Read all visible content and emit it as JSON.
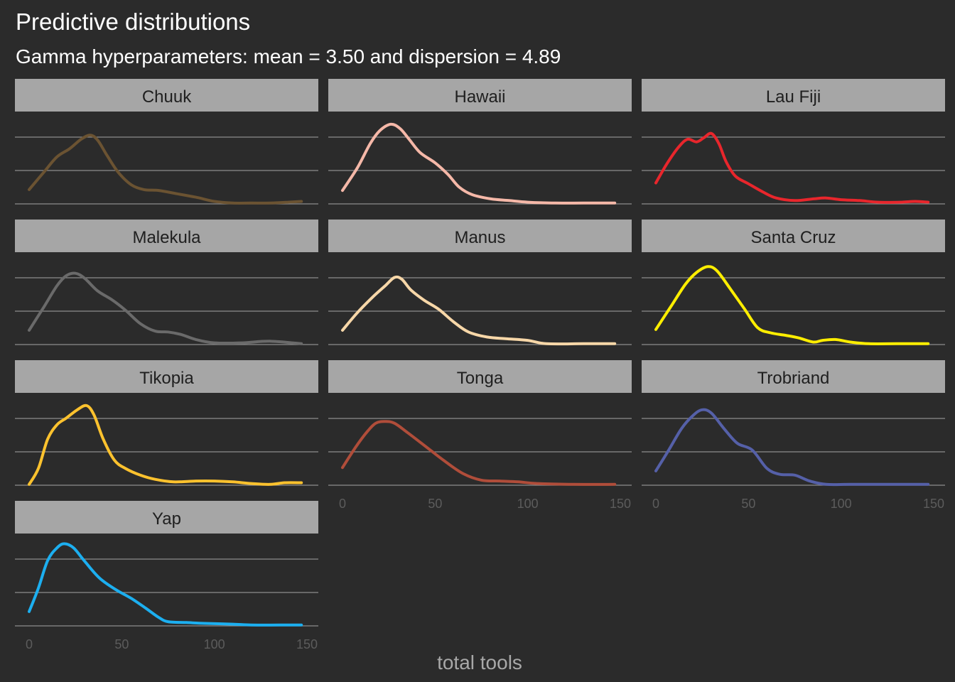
{
  "chart_data": {
    "type": "line",
    "title": "Predictive distributions",
    "subtitle": "Gamma hyperparameters: mean = 3.50 and dispersion = 4.89",
    "xlabel": "total tools",
    "ylabel": "",
    "xlim": [
      0,
      150
    ],
    "x_ticks": [
      0,
      50,
      100,
      150
    ],
    "x_tick_labels": [
      "0",
      "50",
      "100",
      "150"
    ],
    "y_gridlines": 3,
    "y_tick_labels_shown": false,
    "facets": [
      {
        "name": "Chuuk",
        "color": "#6b5332",
        "points": [
          [
            0,
            0.17
          ],
          [
            8,
            0.38
          ],
          [
            15,
            0.56
          ],
          [
            22,
            0.66
          ],
          [
            28,
            0.77
          ],
          [
            33,
            0.82
          ],
          [
            37,
            0.76
          ],
          [
            42,
            0.58
          ],
          [
            48,
            0.38
          ],
          [
            55,
            0.23
          ],
          [
            62,
            0.17
          ],
          [
            70,
            0.16
          ],
          [
            80,
            0.12
          ],
          [
            90,
            0.08
          ],
          [
            100,
            0.03
          ],
          [
            110,
            0.01
          ],
          [
            120,
            0.01
          ],
          [
            130,
            0.01
          ],
          [
            140,
            0.02
          ],
          [
            147,
            0.03
          ]
        ]
      },
      {
        "name": "Hawaii",
        "color": "#f5b8a8",
        "points": [
          [
            0,
            0.16
          ],
          [
            8,
            0.43
          ],
          [
            15,
            0.72
          ],
          [
            20,
            0.87
          ],
          [
            26,
            0.95
          ],
          [
            31,
            0.9
          ],
          [
            36,
            0.77
          ],
          [
            42,
            0.61
          ],
          [
            50,
            0.49
          ],
          [
            57,
            0.35
          ],
          [
            63,
            0.2
          ],
          [
            70,
            0.11
          ],
          [
            80,
            0.06
          ],
          [
            90,
            0.04
          ],
          [
            100,
            0.02
          ],
          [
            115,
            0.01
          ],
          [
            130,
            0.01
          ],
          [
            147,
            0.01
          ]
        ]
      },
      {
        "name": "Lau Fiji",
        "color": "#e8262c",
        "points": [
          [
            0,
            0.25
          ],
          [
            6,
            0.48
          ],
          [
            12,
            0.67
          ],
          [
            17,
            0.77
          ],
          [
            22,
            0.74
          ],
          [
            26,
            0.79
          ],
          [
            30,
            0.84
          ],
          [
            34,
            0.72
          ],
          [
            38,
            0.5
          ],
          [
            43,
            0.33
          ],
          [
            50,
            0.24
          ],
          [
            58,
            0.14
          ],
          [
            65,
            0.07
          ],
          [
            75,
            0.04
          ],
          [
            85,
            0.06
          ],
          [
            92,
            0.07
          ],
          [
            100,
            0.05
          ],
          [
            110,
            0.04
          ],
          [
            120,
            0.02
          ],
          [
            132,
            0.02
          ],
          [
            140,
            0.03
          ],
          [
            147,
            0.02
          ]
        ]
      },
      {
        "name": "Malekula",
        "color": "#6a6a6a",
        "points": [
          [
            0,
            0.17
          ],
          [
            8,
            0.45
          ],
          [
            15,
            0.7
          ],
          [
            20,
            0.82
          ],
          [
            25,
            0.85
          ],
          [
            30,
            0.79
          ],
          [
            37,
            0.64
          ],
          [
            45,
            0.53
          ],
          [
            52,
            0.41
          ],
          [
            60,
            0.25
          ],
          [
            68,
            0.16
          ],
          [
            75,
            0.15
          ],
          [
            82,
            0.12
          ],
          [
            90,
            0.06
          ],
          [
            100,
            0.02
          ],
          [
            115,
            0.02
          ],
          [
            130,
            0.04
          ],
          [
            147,
            0.01
          ]
        ]
      },
      {
        "name": "Manus",
        "color": "#f7d7a8",
        "points": [
          [
            0,
            0.17
          ],
          [
            8,
            0.38
          ],
          [
            16,
            0.56
          ],
          [
            23,
            0.7
          ],
          [
            28,
            0.8
          ],
          [
            32,
            0.78
          ],
          [
            37,
            0.65
          ],
          [
            44,
            0.53
          ],
          [
            52,
            0.42
          ],
          [
            60,
            0.27
          ],
          [
            68,
            0.15
          ],
          [
            78,
            0.09
          ],
          [
            88,
            0.07
          ],
          [
            100,
            0.05
          ],
          [
            110,
            0.01
          ],
          [
            130,
            0.01
          ],
          [
            147,
            0.01
          ]
        ]
      },
      {
        "name": "Santa Cruz",
        "color": "#ffee00",
        "points": [
          [
            0,
            0.18
          ],
          [
            8,
            0.45
          ],
          [
            16,
            0.72
          ],
          [
            22,
            0.86
          ],
          [
            28,
            0.93
          ],
          [
            33,
            0.88
          ],
          [
            40,
            0.67
          ],
          [
            48,
            0.42
          ],
          [
            55,
            0.2
          ],
          [
            62,
            0.14
          ],
          [
            70,
            0.11
          ],
          [
            77,
            0.08
          ],
          [
            85,
            0.03
          ],
          [
            90,
            0.05
          ],
          [
            97,
            0.06
          ],
          [
            105,
            0.03
          ],
          [
            115,
            0.01
          ],
          [
            130,
            0.01
          ],
          [
            147,
            0.01
          ]
        ]
      },
      {
        "name": "Tikopia",
        "color": "#fdc22e",
        "points": [
          [
            0,
            0.01
          ],
          [
            5,
            0.2
          ],
          [
            10,
            0.55
          ],
          [
            15,
            0.72
          ],
          [
            20,
            0.8
          ],
          [
            26,
            0.9
          ],
          [
            31,
            0.95
          ],
          [
            35,
            0.84
          ],
          [
            40,
            0.55
          ],
          [
            46,
            0.3
          ],
          [
            52,
            0.2
          ],
          [
            60,
            0.12
          ],
          [
            68,
            0.07
          ],
          [
            78,
            0.04
          ],
          [
            90,
            0.05
          ],
          [
            100,
            0.05
          ],
          [
            110,
            0.04
          ],
          [
            120,
            0.02
          ],
          [
            130,
            0.01
          ],
          [
            138,
            0.03
          ],
          [
            147,
            0.03
          ]
        ]
      },
      {
        "name": "Tonga",
        "color": "#b04d3a",
        "points": [
          [
            0,
            0.21
          ],
          [
            7,
            0.45
          ],
          [
            13,
            0.63
          ],
          [
            18,
            0.74
          ],
          [
            23,
            0.76
          ],
          [
            28,
            0.74
          ],
          [
            35,
            0.63
          ],
          [
            45,
            0.46
          ],
          [
            55,
            0.29
          ],
          [
            65,
            0.14
          ],
          [
            75,
            0.06
          ],
          [
            85,
            0.05
          ],
          [
            95,
            0.04
          ],
          [
            105,
            0.02
          ],
          [
            125,
            0.01
          ],
          [
            147,
            0.01
          ]
        ]
      },
      {
        "name": "Trobriand",
        "color": "#5560a8",
        "points": [
          [
            0,
            0.17
          ],
          [
            7,
            0.42
          ],
          [
            14,
            0.68
          ],
          [
            20,
            0.83
          ],
          [
            25,
            0.9
          ],
          [
            30,
            0.86
          ],
          [
            37,
            0.67
          ],
          [
            44,
            0.5
          ],
          [
            52,
            0.42
          ],
          [
            60,
            0.2
          ],
          [
            67,
            0.13
          ],
          [
            75,
            0.12
          ],
          [
            83,
            0.05
          ],
          [
            92,
            0.01
          ],
          [
            105,
            0.01
          ],
          [
            125,
            0.01
          ],
          [
            147,
            0.01
          ]
        ]
      },
      {
        "name": "Yap",
        "color": "#1caff0",
        "points": [
          [
            0,
            0.17
          ],
          [
            5,
            0.45
          ],
          [
            10,
            0.78
          ],
          [
            15,
            0.93
          ],
          [
            19,
            0.98
          ],
          [
            24,
            0.93
          ],
          [
            30,
            0.77
          ],
          [
            38,
            0.57
          ],
          [
            47,
            0.43
          ],
          [
            55,
            0.33
          ],
          [
            63,
            0.21
          ],
          [
            70,
            0.1
          ],
          [
            75,
            0.05
          ],
          [
            85,
            0.04
          ],
          [
            95,
            0.03
          ],
          [
            110,
            0.02
          ],
          [
            120,
            0.01
          ],
          [
            135,
            0.01
          ],
          [
            147,
            0.01
          ]
        ]
      }
    ]
  }
}
